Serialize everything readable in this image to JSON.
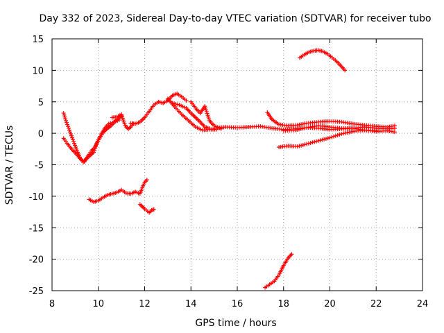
{
  "chart_data": {
    "type": "scatter",
    "title": "Day 332 of 2023, Sidereal Day-to-day VTEC variation (SDTVAR) for receiver tubo",
    "xlabel": "GPS time / hours",
    "ylabel": "SDTVAR / TECUs",
    "xlim": [
      8,
      24
    ],
    "ylim": [
      -25,
      15
    ],
    "xticks": [
      "8",
      "10",
      "12",
      "14",
      "16",
      "18",
      "20",
      "22",
      "24"
    ],
    "yticks": [
      "15",
      "10",
      "5",
      "0",
      "-5",
      "-10",
      "-15",
      "-20",
      "-25"
    ],
    "grid": true,
    "marker": "+",
    "color": "#ff0000",
    "series": [
      {
        "name": "arc-main-left",
        "points": [
          [
            8.5,
            3.2
          ],
          [
            8.6,
            2.0
          ],
          [
            8.75,
            0.5
          ],
          [
            8.9,
            -1.0
          ],
          [
            9.05,
            -2.5
          ],
          [
            9.2,
            -3.8
          ],
          [
            9.35,
            -4.6
          ],
          [
            9.5,
            -4.0
          ],
          [
            9.65,
            -3.5
          ],
          [
            9.8,
            -3.0
          ],
          [
            9.95,
            -1.5
          ],
          [
            10.1,
            -0.5
          ],
          [
            10.25,
            0.3
          ],
          [
            10.4,
            0.8
          ],
          [
            10.55,
            1.2
          ],
          [
            10.7,
            1.8
          ],
          [
            10.85,
            2.3
          ],
          [
            11.0,
            2.8
          ]
        ]
      },
      {
        "name": "arc-main-left-lower",
        "points": [
          [
            8.5,
            -0.8
          ],
          [
            8.65,
            -1.6
          ],
          [
            8.8,
            -2.3
          ],
          [
            8.95,
            -2.9
          ],
          [
            9.1,
            -3.5
          ],
          [
            9.25,
            -4.2
          ],
          [
            9.4,
            -4.5
          ],
          [
            9.55,
            -3.6
          ],
          [
            9.7,
            -2.8
          ],
          [
            9.85,
            -2.2
          ],
          [
            10.0,
            -1.0
          ],
          [
            10.15,
            0.0
          ],
          [
            10.3,
            0.9
          ],
          [
            10.45,
            1.5
          ],
          [
            10.6,
            1.7
          ],
          [
            10.75,
            1.9
          ],
          [
            10.9,
            2.1
          ]
        ]
      },
      {
        "name": "arc-bump-11",
        "points": [
          [
            10.6,
            2.5
          ],
          [
            10.8,
            2.6
          ],
          [
            11.0,
            3.0
          ],
          [
            11.1,
            1.8
          ],
          [
            11.2,
            1.0
          ],
          [
            11.3,
            0.7
          ],
          [
            11.4,
            1.0
          ],
          [
            11.5,
            1.5
          ]
        ]
      },
      {
        "name": "arc-rise-12",
        "points": [
          [
            11.4,
            1.6
          ],
          [
            11.6,
            1.5
          ],
          [
            11.8,
            1.8
          ],
          [
            12.0,
            2.5
          ],
          [
            12.2,
            3.5
          ],
          [
            12.4,
            4.5
          ],
          [
            12.6,
            5.0
          ],
          [
            12.8,
            4.8
          ],
          [
            13.0,
            5.2
          ],
          [
            13.2,
            6.0
          ],
          [
            13.4,
            6.3
          ],
          [
            13.6,
            5.8
          ],
          [
            13.8,
            5.2
          ]
        ]
      },
      {
        "name": "arc-fall-14a",
        "points": [
          [
            13.0,
            5.5
          ],
          [
            13.3,
            4.2
          ],
          [
            13.6,
            3.0
          ],
          [
            13.9,
            2.0
          ],
          [
            14.2,
            1.0
          ],
          [
            14.5,
            0.5
          ],
          [
            14.8,
            0.6
          ],
          [
            15.1,
            0.6
          ]
        ]
      },
      {
        "name": "arc-fall-14b",
        "points": [
          [
            13.2,
            4.8
          ],
          [
            13.5,
            4.5
          ],
          [
            13.8,
            4.0
          ],
          [
            14.0,
            3.2
          ],
          [
            14.2,
            2.5
          ],
          [
            14.4,
            1.8
          ],
          [
            14.6,
            1.0
          ],
          [
            14.8,
            0.8
          ]
        ]
      },
      {
        "name": "arc-fall-14c",
        "points": [
          [
            14.0,
            5.0
          ],
          [
            14.2,
            4.0
          ],
          [
            14.4,
            3.2
          ],
          [
            14.6,
            4.3
          ],
          [
            14.8,
            2.0
          ],
          [
            15.0,
            1.2
          ],
          [
            15.3,
            0.7
          ]
        ]
      },
      {
        "name": "arc-flat-middle",
        "points": [
          [
            15.0,
            0.8
          ],
          [
            15.5,
            1.0
          ],
          [
            16.0,
            0.9
          ],
          [
            16.5,
            1.0
          ],
          [
            17.0,
            1.1
          ],
          [
            17.5,
            0.8
          ],
          [
            18.0,
            0.6
          ],
          [
            18.5,
            0.7
          ],
          [
            19.0,
            0.9
          ],
          [
            19.5,
            0.8
          ],
          [
            20.0,
            0.6
          ],
          [
            20.5,
            0.7
          ],
          [
            21.0,
            0.8
          ],
          [
            21.5,
            1.0
          ],
          [
            22.0,
            0.8
          ],
          [
            22.5,
            0.7
          ],
          [
            22.8,
            0.8
          ]
        ]
      },
      {
        "name": "arc-evening-upper",
        "points": [
          [
            17.3,
            3.3
          ],
          [
            17.5,
            2.2
          ],
          [
            17.8,
            1.4
          ],
          [
            18.2,
            1.2
          ],
          [
            18.6,
            1.3
          ],
          [
            19.0,
            1.6
          ],
          [
            19.5,
            1.8
          ],
          [
            20.0,
            1.9
          ],
          [
            20.5,
            1.8
          ],
          [
            21.0,
            1.5
          ],
          [
            21.5,
            1.3
          ],
          [
            22.0,
            1.1
          ],
          [
            22.5,
            1.0
          ],
          [
            22.8,
            1.2
          ]
        ]
      },
      {
        "name": "arc-evening-middle",
        "points": [
          [
            18.0,
            0.4
          ],
          [
            18.5,
            0.5
          ],
          [
            19.0,
            0.9
          ],
          [
            19.5,
            1.2
          ],
          [
            20.0,
            1.0
          ],
          [
            20.5,
            0.8
          ],
          [
            21.0,
            0.8
          ],
          [
            21.5,
            0.5
          ],
          [
            22.0,
            0.3
          ],
          [
            22.5,
            0.4
          ],
          [
            22.8,
            0.2
          ]
        ]
      },
      {
        "name": "arc-evening-lower",
        "points": [
          [
            17.8,
            -2.2
          ],
          [
            18.2,
            -2.0
          ],
          [
            18.6,
            -2.1
          ],
          [
            19.0,
            -1.7
          ],
          [
            19.5,
            -1.2
          ],
          [
            20.0,
            -0.7
          ],
          [
            20.5,
            -0.1
          ],
          [
            21.0,
            0.3
          ],
          [
            21.5,
            0.5
          ],
          [
            22.0,
            0.4
          ]
        ]
      },
      {
        "name": "arc-high-19",
        "points": [
          [
            18.7,
            12.0
          ],
          [
            18.9,
            12.5
          ],
          [
            19.1,
            12.9
          ],
          [
            19.3,
            13.1
          ],
          [
            19.5,
            13.2
          ],
          [
            19.7,
            13.0
          ],
          [
            19.9,
            12.6
          ],
          [
            20.1,
            12.0
          ],
          [
            20.3,
            11.4
          ],
          [
            20.5,
            10.6
          ],
          [
            20.65,
            10.0
          ]
        ]
      },
      {
        "name": "arc-low-10",
        "points": [
          [
            9.6,
            -10.5
          ],
          [
            9.8,
            -10.9
          ],
          [
            10.0,
            -10.7
          ],
          [
            10.2,
            -10.2
          ],
          [
            10.4,
            -9.8
          ],
          [
            10.6,
            -9.6
          ],
          [
            10.8,
            -9.4
          ],
          [
            11.0,
            -9.0
          ],
          [
            11.2,
            -9.5
          ],
          [
            11.4,
            -9.6
          ],
          [
            11.6,
            -9.3
          ],
          [
            11.8,
            -9.6
          ],
          [
            11.9,
            -8.6
          ],
          [
            12.0,
            -7.8
          ],
          [
            12.1,
            -7.4
          ]
        ]
      },
      {
        "name": "arc-low-12",
        "points": [
          [
            11.8,
            -11.3
          ],
          [
            12.0,
            -12.0
          ],
          [
            12.2,
            -12.6
          ],
          [
            12.3,
            -12.2
          ],
          [
            12.4,
            -12.1
          ]
        ]
      },
      {
        "name": "arc-low-18",
        "points": [
          [
            17.2,
            -24.5
          ],
          [
            17.4,
            -24.0
          ],
          [
            17.6,
            -23.5
          ],
          [
            17.8,
            -22.5
          ],
          [
            18.0,
            -21.0
          ],
          [
            18.2,
            -19.8
          ],
          [
            18.35,
            -19.2
          ]
        ]
      }
    ]
  }
}
